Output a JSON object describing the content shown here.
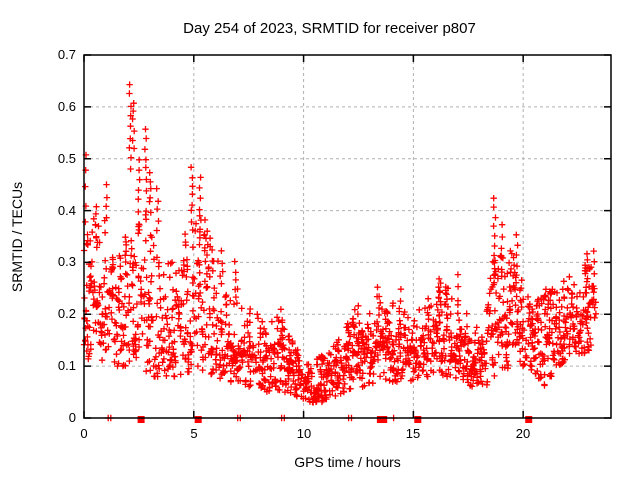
{
  "chart_data": {
    "type": "scatter",
    "title": "Day 254 of 2023, SRMTID for receiver p807",
    "xlabel": "GPS time / hours",
    "ylabel": "SRMTID / TECUs",
    "xlim": [
      0,
      24
    ],
    "ylim": [
      0,
      0.7
    ],
    "xticks": [
      0,
      5,
      10,
      15,
      20
    ],
    "xtick_labels": [
      "0",
      "5",
      "10",
      "15",
      "20"
    ],
    "yticks": [
      0,
      0.1,
      0.2,
      0.3,
      0.4,
      0.5,
      0.6,
      0.7
    ],
    "ytick_labels": [
      "0",
      "0.1",
      "0.2",
      "0.3",
      "0.4",
      "0.5",
      "0.6",
      "0.7"
    ],
    "grid": true,
    "legend": "none",
    "marker": "plus",
    "marker_color": "#ff0000",
    "seed": 20230911,
    "envelope": [
      [
        0.0,
        0.09,
        0.33
      ],
      [
        0.3,
        0.13,
        0.4
      ],
      [
        0.6,
        0.13,
        0.38
      ],
      [
        1.0,
        0.1,
        0.42
      ],
      [
        1.4,
        0.1,
        0.3
      ],
      [
        1.8,
        0.1,
        0.33
      ],
      [
        2.1,
        0.1,
        0.4
      ],
      [
        2.5,
        0.1,
        0.38
      ],
      [
        2.8,
        0.09,
        0.4
      ],
      [
        3.2,
        0.08,
        0.36
      ],
      [
        3.6,
        0.08,
        0.3
      ],
      [
        4.0,
        0.08,
        0.3
      ],
      [
        4.4,
        0.08,
        0.34
      ],
      [
        4.8,
        0.09,
        0.38
      ],
      [
        5.2,
        0.09,
        0.4
      ],
      [
        5.6,
        0.09,
        0.36
      ],
      [
        6.0,
        0.08,
        0.32
      ],
      [
        6.4,
        0.07,
        0.26
      ],
      [
        6.9,
        0.07,
        0.29
      ],
      [
        7.3,
        0.06,
        0.22
      ],
      [
        7.8,
        0.06,
        0.21
      ],
      [
        8.3,
        0.05,
        0.18
      ],
      [
        8.8,
        0.05,
        0.21
      ],
      [
        9.3,
        0.05,
        0.16
      ],
      [
        9.8,
        0.04,
        0.13
      ],
      [
        10.3,
        0.03,
        0.11
      ],
      [
        10.8,
        0.03,
        0.12
      ],
      [
        11.3,
        0.04,
        0.14
      ],
      [
        11.8,
        0.05,
        0.17
      ],
      [
        12.3,
        0.06,
        0.22
      ],
      [
        12.8,
        0.06,
        0.19
      ],
      [
        13.3,
        0.07,
        0.24
      ],
      [
        13.8,
        0.07,
        0.21
      ],
      [
        14.3,
        0.07,
        0.24
      ],
      [
        14.8,
        0.07,
        0.2
      ],
      [
        15.3,
        0.08,
        0.21
      ],
      [
        15.8,
        0.08,
        0.24
      ],
      [
        16.2,
        0.08,
        0.27
      ],
      [
        16.7,
        0.08,
        0.26
      ],
      [
        17.2,
        0.07,
        0.23
      ],
      [
        17.7,
        0.06,
        0.17
      ],
      [
        18.2,
        0.06,
        0.2
      ],
      [
        18.6,
        0.07,
        0.3
      ],
      [
        19.0,
        0.09,
        0.33
      ],
      [
        19.5,
        0.1,
        0.33
      ],
      [
        20.0,
        0.1,
        0.28
      ],
      [
        20.5,
        0.09,
        0.23
      ],
      [
        21.0,
        0.06,
        0.25
      ],
      [
        21.5,
        0.1,
        0.26
      ],
      [
        22.0,
        0.11,
        0.27
      ],
      [
        22.5,
        0.12,
        0.29
      ],
      [
        23.0,
        0.13,
        0.31
      ],
      [
        23.35,
        0.15,
        0.3
      ]
    ],
    "spikes": [
      [
        0.1,
        0.38,
        0.51,
        5
      ],
      [
        0.55,
        0.35,
        0.41,
        4
      ],
      [
        1.0,
        0.36,
        0.45,
        5
      ],
      [
        2.1,
        0.48,
        0.645,
        9
      ],
      [
        2.25,
        0.52,
        0.61,
        6
      ],
      [
        2.5,
        0.4,
        0.5,
        6
      ],
      [
        2.8,
        0.44,
        0.56,
        7
      ],
      [
        3.0,
        0.4,
        0.47,
        6
      ],
      [
        3.35,
        0.36,
        0.44,
        5
      ],
      [
        4.9,
        0.38,
        0.48,
        7
      ],
      [
        5.3,
        0.36,
        0.46,
        6
      ],
      [
        5.5,
        0.3,
        0.38,
        4
      ],
      [
        6.3,
        0.26,
        0.32,
        4
      ],
      [
        6.9,
        0.23,
        0.3,
        5
      ],
      [
        9.0,
        0.15,
        0.21,
        4
      ],
      [
        12.5,
        0.16,
        0.22,
        4
      ],
      [
        13.4,
        0.18,
        0.25,
        5
      ],
      [
        14.4,
        0.18,
        0.25,
        4
      ],
      [
        16.2,
        0.2,
        0.27,
        4
      ],
      [
        17.0,
        0.2,
        0.28,
        4
      ],
      [
        18.7,
        0.3,
        0.42,
        8
      ],
      [
        19.05,
        0.27,
        0.37,
        6
      ],
      [
        19.7,
        0.26,
        0.35,
        6
      ],
      [
        22.9,
        0.24,
        0.32,
        6
      ],
      [
        23.2,
        0.25,
        0.325,
        4
      ]
    ],
    "baseline_markers": {
      "squares_hours": [
        2.6,
        5.2,
        13.5,
        13.65,
        15.2,
        20.25
      ],
      "plus_hours": [
        1.1,
        1.22,
        7.0,
        7.12,
        9.0,
        9.12,
        12.05,
        12.18,
        14.1
      ]
    }
  },
  "colors": {
    "marker": "#ff0000",
    "grid": "#b0b0b0",
    "border": "#000000",
    "text": "#000000",
    "background": "#ffffff"
  }
}
